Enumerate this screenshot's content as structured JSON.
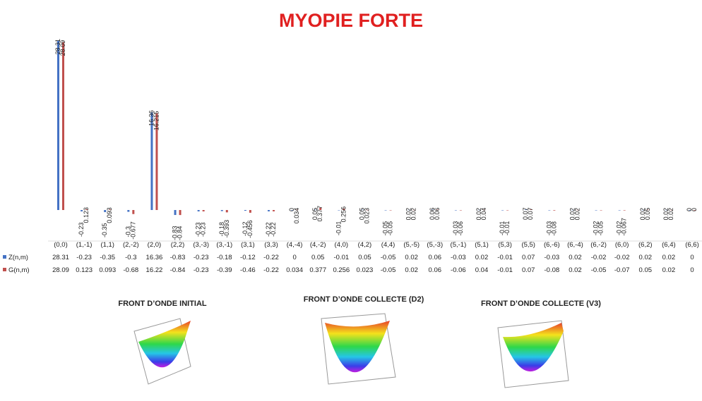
{
  "chart_data": {
    "type": "bar",
    "title": "MYOPIE FORTE",
    "categories": [
      "(0,0)",
      "(1,-1)",
      "(1,1)",
      "(2,-2)",
      "(2,0)",
      "(2,2)",
      "(3,-3)",
      "(3,-1)",
      "(3,1)",
      "(3,3)",
      "(4,-4)",
      "(4,-2)",
      "(4,0)",
      "(4,2)",
      "(4,4)",
      "(5,-5)",
      "(5,-3)",
      "(5,-1)",
      "(5,1)",
      "(5,3)",
      "(5,5)",
      "(6,-6)",
      "(6,-4)",
      "(6,-2)",
      "(6,0)",
      "(6,2)",
      "(6,4)",
      "(6,6)"
    ],
    "series": [
      {
        "name": "Z(n,m)",
        "color": "#4472c4",
        "values": [
          28.31,
          -0.23,
          -0.35,
          -0.3,
          16.36,
          -0.83,
          -0.23,
          -0.18,
          -0.12,
          -0.22,
          0,
          0.05,
          -0.01,
          0.05,
          -0.05,
          0.02,
          0.06,
          -0.03,
          0.02,
          -0.01,
          0.07,
          -0.03,
          0.02,
          -0.02,
          -0.02,
          0.02,
          0.02,
          0
        ]
      },
      {
        "name": "G(n,m)",
        "color": "#c0504d",
        "values": [
          28.09,
          0.123,
          0.093,
          -0.677,
          16.215,
          -0.84,
          -0.23,
          -0.393,
          -0.456,
          -0.22,
          0.034,
          0.377,
          0.256,
          0.023,
          -0.05,
          0.02,
          0.06,
          -0.06,
          0.04,
          -0.01,
          0.07,
          -0.08,
          0.02,
          -0.05,
          -0.067,
          0.05,
          0.02,
          0
        ],
        "value_labels": [
          "28.09",
          "0.123",
          "0.093",
          "-0.68",
          "16.22",
          "-0.84",
          "-0.23",
          "-0.39",
          "-0.46",
          "-0.22",
          "0.034",
          "0.377",
          "0.256",
          "0.023",
          "-0.05",
          "0.02",
          "0.06",
          "-0.06",
          "0.04",
          "-0.01",
          "0.07",
          "-0.08",
          "0.02",
          "-0.05",
          "-0.07",
          "0.05",
          "0.02",
          "0"
        ]
      }
    ],
    "annotations": [
      "FRONT D’ONDE  INITIAL",
      "FRONT D’ONDE  COLLECTE  (D2)",
      "FRONT D’ONDE  COLLECTE  (V3)"
    ]
  }
}
